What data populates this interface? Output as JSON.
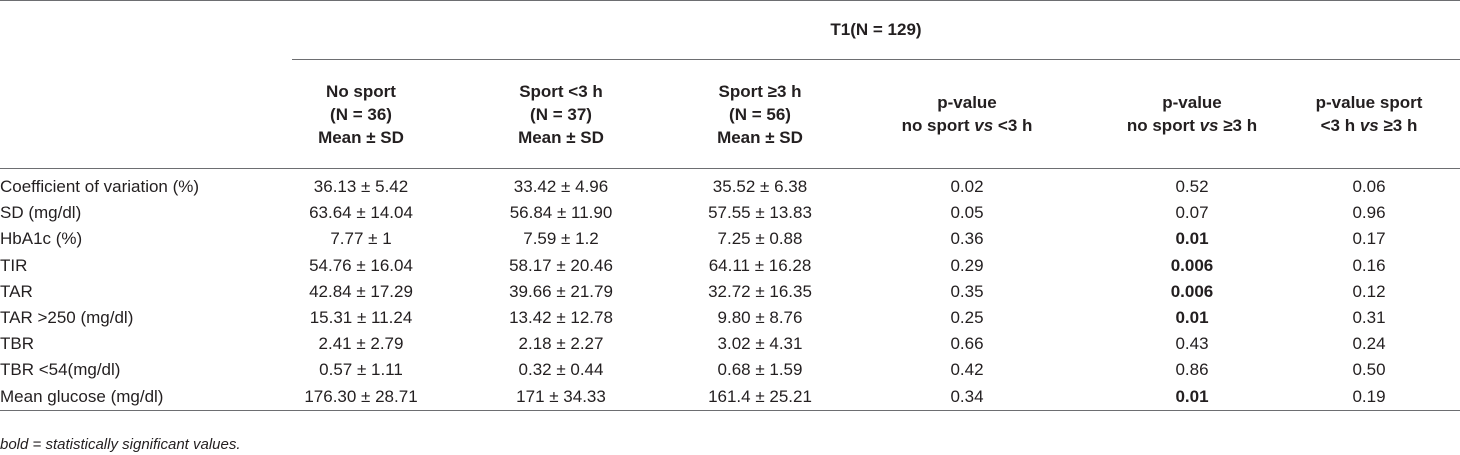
{
  "group_header": "T1(N = 129)",
  "columns": [
    {
      "lines": [
        "No sport",
        "(N = 36)",
        "Mean ± SD"
      ]
    },
    {
      "lines": [
        "Sport <3 h",
        "(N = 37)",
        "Mean ± SD"
      ]
    },
    {
      "lines": [
        "Sport ≥3 h",
        "(N = 56)",
        "Mean ± SD"
      ]
    },
    {
      "line1": "p-value",
      "line2_pre": "no sport ",
      "line2_em": "vs",
      "line2_post": " <3 h"
    },
    {
      "line1": "p-value",
      "line2_pre": "no sport ",
      "line2_em": "vs",
      "line2_post": " ≥3 h"
    },
    {
      "line1": "p-value sport",
      "line2_pre": "<3 h ",
      "line2_em": "vs",
      "line2_post": " ≥3 h"
    }
  ],
  "rows": [
    {
      "label": "Coefficient of variation (%)",
      "cells": [
        "36.13 ± 5.42",
        "33.42 ± 4.96",
        "35.52 ± 6.38",
        "0.02",
        "0.52",
        "0.06"
      ]
    },
    {
      "label": "SD (mg/dl)",
      "cells": [
        "63.64 ± 14.04",
        "56.84 ± 11.90",
        "57.55 ± 13.83",
        "0.05",
        "0.07",
        "0.96"
      ]
    },
    {
      "label": "HbA1c (%)",
      "cells": [
        "7.77 ± 1",
        "7.59 ± 1.2",
        "7.25 ± 0.88",
        "0.36",
        "0.01",
        "0.17"
      ]
    },
    {
      "label": "TIR",
      "cells": [
        "54.76 ± 16.04",
        "58.17 ± 20.46",
        "64.11 ± 16.28",
        "0.29",
        "0.006",
        "0.16"
      ]
    },
    {
      "label": "TAR",
      "cells": [
        "42.84 ± 17.29",
        "39.66 ± 21.79",
        "32.72 ± 16.35",
        "0.35",
        "0.006",
        "0.12"
      ]
    },
    {
      "label": "TAR >250 (mg/dl)",
      "cells": [
        "15.31 ± 11.24",
        "13.42 ± 12.78",
        "9.80 ± 8.76",
        "0.25",
        "0.01",
        "0.31"
      ]
    },
    {
      "label": "TBR",
      "cells": [
        "2.41 ± 2.79",
        "2.18 ± 2.27",
        "3.02 ± 4.31",
        "0.66",
        "0.43",
        "0.24"
      ]
    },
    {
      "label": "TBR <54(mg/dl)",
      "cells": [
        "0.57 ± 1.11",
        "0.32 ± 0.44",
        "0.68 ± 1.59",
        "0.42",
        "0.86",
        "0.50"
      ]
    },
    {
      "label": "Mean glucose (mg/dl)",
      "cells": [
        "176.30 ± 28.71",
        "171 ± 34.33",
        "161.4 ± 25.21",
        "0.34",
        "0.01",
        "0.19"
      ]
    }
  ],
  "bold_cells": [
    {
      "row": 2,
      "col": 4
    },
    {
      "row": 3,
      "col": 4
    },
    {
      "row": 4,
      "col": 4
    },
    {
      "row": 5,
      "col": 4
    },
    {
      "row": 8,
      "col": 4
    }
  ],
  "footnote": "bold = statistically significant values."
}
